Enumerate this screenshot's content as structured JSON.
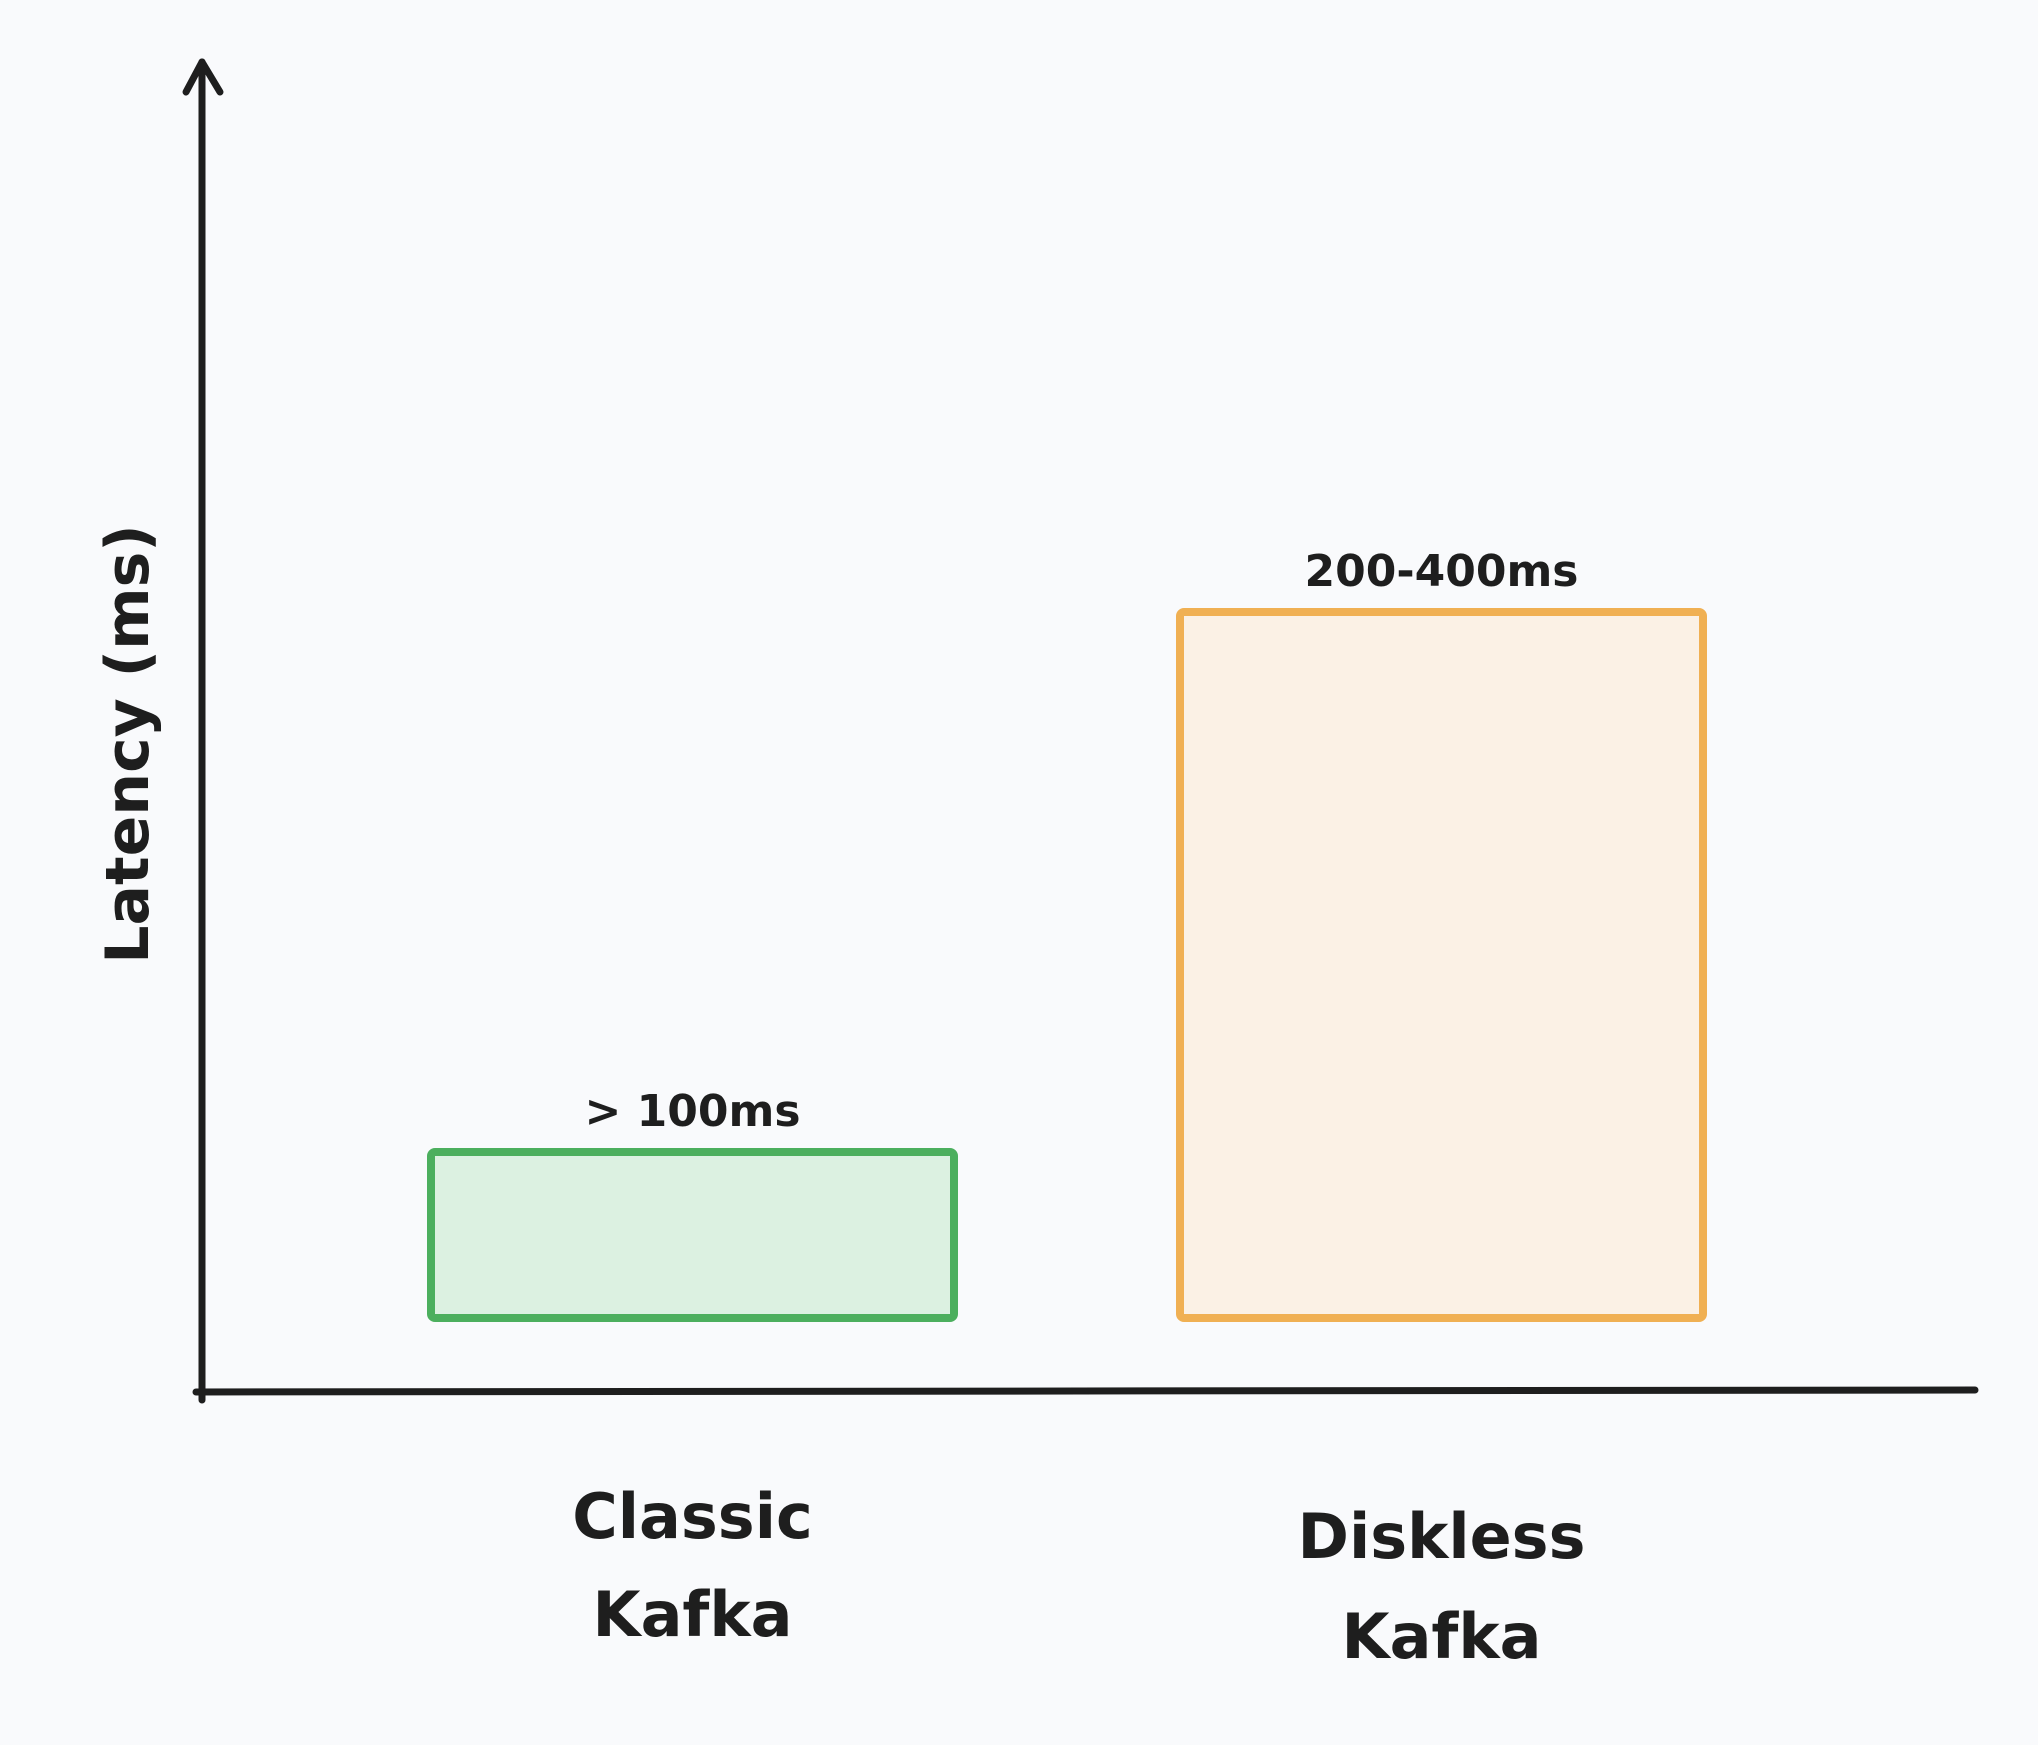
{
  "chart_data": {
    "type": "bar",
    "ylabel": "Latency (ms)",
    "xlabel": "",
    "grid": false,
    "legend": "none",
    "categories": [
      [
        "Classic",
        "Kafka"
      ],
      [
        "Diskless",
        "Kafka"
      ]
    ],
    "values": [
      100,
      400
    ],
    "data_labels": [
      "> 100ms",
      "200-400ms"
    ],
    "colors": {
      "stroke": [
        "#4caf5e",
        "#f0b053"
      ],
      "fill": [
        "#dcf1e1",
        "#fbf1e5"
      ],
      "axis": "#1e1e1e",
      "background": "#f9fafc"
    },
    "ylim": [
      0,
      580
    ]
  }
}
